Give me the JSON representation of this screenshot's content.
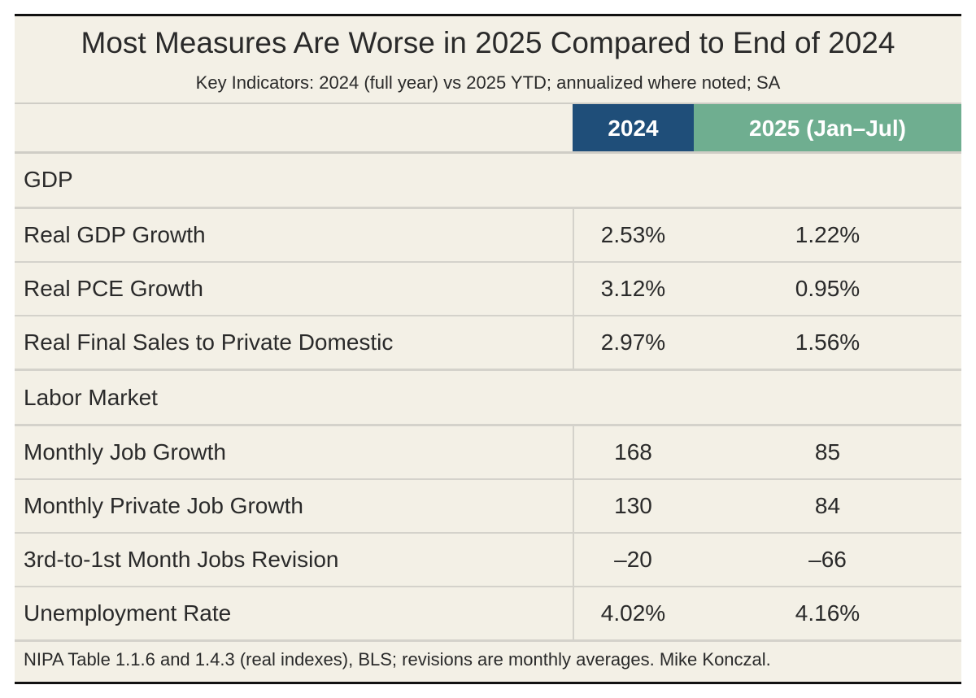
{
  "chart_data": {
    "type": "table",
    "title": "Most Measures Are Worse in 2025 Compared to End of 2024",
    "subtitle": "Key Indicators: 2024 (full year) vs 2025 YTD; annualized where noted; SA",
    "columns": [
      "2024",
      "2025 (Jan–Jul)"
    ],
    "header_colors": [
      "#1f4e79",
      "#6fae90"
    ],
    "sections": [
      {
        "name": "GDP",
        "rows": [
          {
            "label": "Real GDP Growth",
            "v2024": "2.53%",
            "v2025": "1.22%"
          },
          {
            "label": "Real PCE Growth",
            "v2024": "3.12%",
            "v2025": "0.95%"
          },
          {
            "label": "Real Final Sales to Private Domestic",
            "v2024": "2.97%",
            "v2025": "1.56%"
          }
        ]
      },
      {
        "name": "Labor Market",
        "rows": [
          {
            "label": "Monthly Job Growth",
            "v2024": "168",
            "v2025": "85"
          },
          {
            "label": "Monthly Private Job Growth",
            "v2024": "130",
            "v2025": "84"
          },
          {
            "label": "3rd-to-1st Month Jobs Revision",
            "v2024": "–20",
            "v2025": "–66"
          },
          {
            "label": "Unemployment Rate",
            "v2024": "4.02%",
            "v2025": "4.16%"
          }
        ]
      }
    ],
    "footnote": "NIPA Table 1.1.6 and 1.4.3 (real indexes), BLS; revisions are monthly averages. Mike Konczal."
  }
}
